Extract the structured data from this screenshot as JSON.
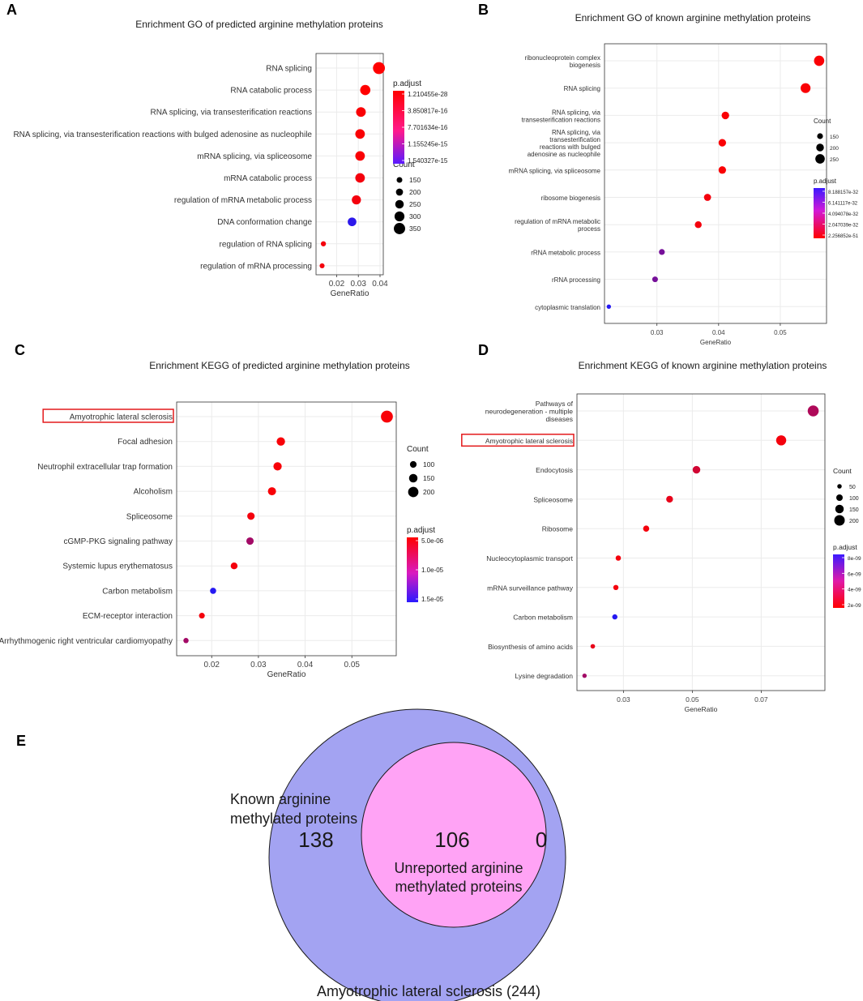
{
  "colors": {
    "high": "#ff0000",
    "low": "#1a1aff",
    "grid": "#ebebeb",
    "venn_outer": "#a3a3f2",
    "venn_inner": "#ffa3f5",
    "highlight_box": "#e41a1c"
  },
  "chart_data": [
    {
      "id": "A",
      "type": "scatter",
      "title": "Enrichment GO of predicted arginine methylation proteins",
      "xlabel": "GeneRatio",
      "xlim": [
        0.0105,
        0.0415
      ],
      "xticks": [
        0.02,
        0.03,
        0.04
      ],
      "xtick_labels": [
        "0.02",
        "0.03",
        "0.04"
      ],
      "categories": [
        "RNA splicing",
        "RNA catabolic process",
        "RNA splicing, via transesterification reactions",
        "RNA splicing, via transesterification reactions with bulged adenosine as nucleophile",
        "mRNA splicing, via spliceosome",
        "mRNA catabolic process",
        "regulation of mRNA metabolic process",
        "DNA conformation change",
        "regulation of RNA splicing",
        "regulation of mRNA processing"
      ],
      "gene_ratio": [
        0.0395,
        0.0332,
        0.0312,
        0.0308,
        0.0308,
        0.0308,
        0.0291,
        0.0271,
        0.0139,
        0.0133
      ],
      "count": [
        372,
        310,
        292,
        288,
        288,
        288,
        272,
        255,
        130,
        124
      ],
      "color_level": [
        0.0,
        0.0,
        0.02,
        0.02,
        0.02,
        0.05,
        0.05,
        0.92,
        0.05,
        0.05
      ],
      "size_legend": {
        "title": "Count",
        "values": [
          150,
          200,
          250,
          300,
          350
        ],
        "labels": [
          "150",
          "200",
          "250",
          "300",
          "350"
        ]
      },
      "color_legend": {
        "title": "p.adjust",
        "labels": [
          "1.210455e-28",
          "3.850817e-16",
          "7.701634e-16",
          "1.155245e-15",
          "1.540327e-15"
        ]
      },
      "highlight": ""
    },
    {
      "id": "B",
      "type": "scatter",
      "title": "Enrichment GO of known arginine methylation proteins",
      "xlabel": "GeneRatio",
      "xlim": [
        0.0215,
        0.0575
      ],
      "xticks": [
        0.03,
        0.04,
        0.05
      ],
      "xtick_labels": [
        "0.03",
        "0.04",
        "0.05"
      ],
      "categories": [
        "ribonucleoprotein complex biogenesis",
        "RNA splicing",
        "RNA splicing, via transesterification reactions",
        "RNA splicing, via transesterification reactions with bulged adenosine as nucleophile",
        "mRNA splicing, via spliceosome",
        "ribosome biogenesis",
        "regulation of mRNA metabolic process",
        "rRNA metabolic process",
        "rRNA processing",
        "cytoplasmic translation"
      ],
      "category_lines": [
        [
          "ribonucleoprotein complex",
          "biogenesis"
        ],
        [
          "RNA splicing"
        ],
        [
          "RNA splicing, via",
          "transesterification reactions"
        ],
        [
          "RNA splicing, via",
          "transesterification",
          "reactions with bulged",
          "adenosine as nucleophile"
        ],
        [
          "mRNA splicing, via spliceosome"
        ],
        [
          "ribosome biogenesis"
        ],
        [
          "regulation of mRNA metabolic",
          "process"
        ],
        [
          "rRNA metabolic process"
        ],
        [
          "rRNA processing"
        ],
        [
          "cytoplasmic translation"
        ]
      ],
      "gene_ratio": [
        0.0563,
        0.0541,
        0.0411,
        0.0406,
        0.0406,
        0.0382,
        0.0367,
        0.0308,
        0.0297,
        0.0222
      ],
      "count": [
        272,
        262,
        198,
        196,
        196,
        185,
        178,
        150,
        145,
        108
      ],
      "color_level": [
        0.02,
        0.02,
        0.02,
        0.02,
        0.02,
        0.05,
        0.05,
        0.6,
        0.6,
        0.95
      ],
      "size_legend": {
        "title": "Count",
        "values": [
          150,
          200,
          250
        ],
        "labels": [
          "150",
          "200",
          "250"
        ]
      },
      "color_legend": {
        "title": "p.adjust",
        "labels": [
          "8.188157e-32",
          "6.141117e-32",
          "4.094078e-32",
          "2.047039e-32",
          "2.256852e-51"
        ]
      },
      "highlight": ""
    },
    {
      "id": "C",
      "type": "scatter",
      "title": "Enrichment KEGG of predicted arginine methylation proteins",
      "xlabel": "GeneRatio",
      "xlim": [
        0.0125,
        0.0595
      ],
      "xticks": [
        0.02,
        0.03,
        0.04,
        0.05
      ],
      "xtick_labels": [
        "0.02",
        "0.03",
        "0.04",
        "0.05"
      ],
      "categories": [
        "Amyotrophic lateral sclerosis",
        "Focal adhesion",
        "Neutrophil extracellular trap formation",
        "Alcoholism",
        "Spliceosome",
        "cGMP-PKG signaling pathway",
        "Systemic lupus erythematosus",
        "Carbon metabolism",
        "ECM-receptor interaction",
        "Arrhythmogenic right ventricular cardiomyopathy"
      ],
      "gene_ratio": [
        0.0575,
        0.0348,
        0.0341,
        0.0329,
        0.0284,
        0.0282,
        0.0248,
        0.0203,
        0.0179,
        0.0145
      ],
      "count": [
        244,
        148,
        145,
        140,
        121,
        120,
        105,
        86,
        76,
        62
      ],
      "color_level": [
        0.03,
        0.03,
        0.03,
        0.03,
        0.05,
        0.4,
        0.05,
        0.95,
        0.05,
        0.4
      ],
      "size_legend": {
        "title": "Count",
        "values": [
          100,
          150,
          200
        ],
        "labels": [
          "100",
          "150",
          "200"
        ]
      },
      "color_legend": {
        "title": "p.adjust",
        "labels": [
          "5.0e-06",
          "1.0e-05",
          "1.5e-05"
        ]
      },
      "highlight": "Amyotrophic lateral sclerosis"
    },
    {
      "id": "D",
      "type": "scatter",
      "title": "Enrichment KEGG of known arginine methylation proteins",
      "xlabel": "GeneRatio",
      "xlim": [
        0.0165,
        0.0885
      ],
      "xticks": [
        0.03,
        0.05,
        0.07
      ],
      "xtick_labels": [
        "0.03",
        "0.05",
        "0.07"
      ],
      "categories": [
        "Pathways of neurodegeneration - multiple diseases",
        "Amyotrophic lateral sclerosis",
        "Endocytosis",
        "Spliceosome",
        "Ribosome",
        "Nucleocytoplasmic transport",
        "mRNA surveillance pathway",
        "Carbon metabolism",
        "Biosynthesis of amino acids",
        "Lysine degradation"
      ],
      "category_lines": [
        [
          "Pathways of",
          "neurodegeneration - multiple",
          "diseases"
        ],
        [
          "Amyotrophic lateral sclerosis"
        ],
        [
          "Endocytosis"
        ],
        [
          "Spliceosome"
        ],
        [
          "Ribosome"
        ],
        [
          "Nucleocytoplasmic transport"
        ],
        [
          "mRNA surveillance pathway"
        ],
        [
          "Carbon metabolism"
        ],
        [
          "Biosynthesis of amino acids"
        ],
        [
          "Lysine degradation"
        ]
      ],
      "gene_ratio": [
        0.0851,
        0.0758,
        0.0512,
        0.0434,
        0.0366,
        0.0285,
        0.0278,
        0.0275,
        0.0211,
        0.0187
      ],
      "count": [
        212,
        189,
        128,
        108,
        91,
        71,
        69,
        68,
        53,
        47
      ],
      "color_level": [
        0.35,
        0.05,
        0.2,
        0.1,
        0.05,
        0.05,
        0.05,
        0.95,
        0.1,
        0.4
      ],
      "size_legend": {
        "title": "Count",
        "values": [
          50,
          100,
          150,
          200
        ],
        "labels": [
          "50",
          "100",
          "150",
          "200"
        ]
      },
      "color_legend": {
        "title": "p.adjust",
        "labels": [
          "8e-09",
          "6e-09",
          "4e-09",
          "2e-09"
        ]
      },
      "highlight": "Amyotrophic lateral sclerosis"
    }
  ],
  "venn": {
    "letter": "E",
    "outer_label_lines": [
      "Known arginine",
      "methylated proteins"
    ],
    "outer_count": "138",
    "inner_count": "106",
    "inner_label_lines": [
      "Unreported arginine",
      "methylated proteins"
    ],
    "right_count": "0",
    "bottom_label": "Amyotrophic lateral sclerosis (244)"
  }
}
